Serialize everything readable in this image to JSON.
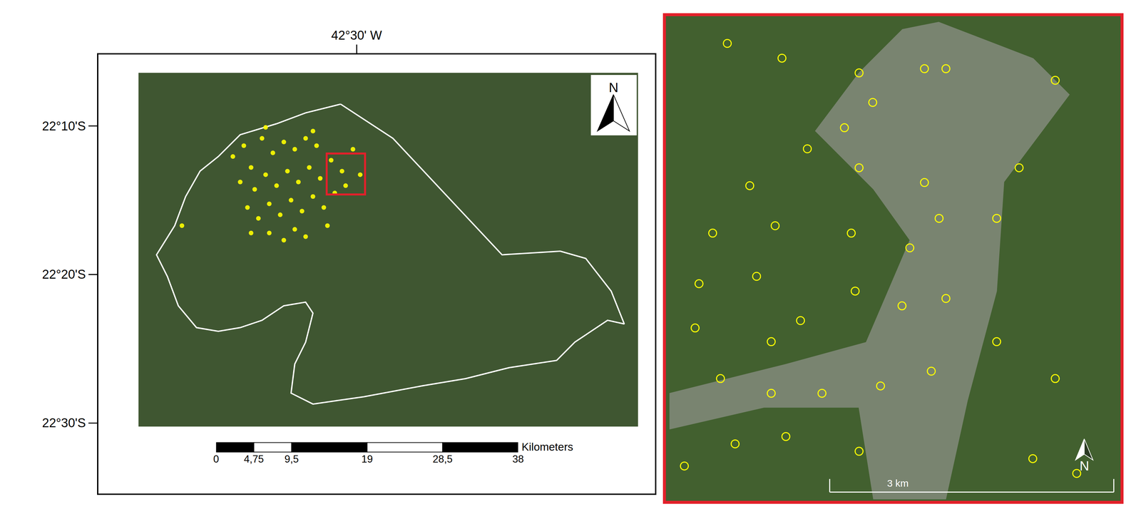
{
  "chart_data": [
    {
      "type": "map",
      "xlim": [
        -42.8139,
        -42.1375
      ],
      "ylim": [
        -22.5792,
        -22.0866
      ],
      "xticks": [
        {
          "value": -42.5,
          "label": "42°30' W"
        }
      ],
      "yticks": [
        {
          "value": -22.1667,
          "label": "22°10'S"
        },
        {
          "value": -22.3333,
          "label": "22°20'S"
        },
        {
          "value": -22.5,
          "label": "22°30'S"
        }
      ],
      "grid": false,
      "map_extent": {
        "lon": [
          -42.765,
          -42.158
        ],
        "lat": [
          -22.504,
          -22.107
        ]
      },
      "boundary": {
        "color": "#ffffff",
        "lon": [
          -42.5194,
          -42.4558,
          -42.3232,
          -42.2525,
          -42.2215,
          -42.1906,
          -42.1747,
          -42.195,
          -42.2348,
          -42.2569,
          -42.3144,
          -42.3674,
          -42.4204,
          -42.4912,
          -42.553,
          -42.5796,
          -42.5751,
          -42.5619,
          -42.553,
          -42.5619,
          -42.5884,
          -42.6149,
          -42.6414,
          -42.668,
          -42.6945,
          -42.7166,
          -42.7298,
          -42.7431,
          -42.721,
          -42.7077,
          -42.6901,
          -42.668,
          -42.6414,
          -42.5972,
          -42.5619,
          -42.5194
        ],
        "lat": [
          -22.1422,
          -22.1806,
          -22.3113,
          -22.3072,
          -22.3154,
          -22.3521,
          -22.3889,
          -22.3848,
          -22.4093,
          -22.4298,
          -22.4379,
          -22.4502,
          -22.4584,
          -22.4706,
          -22.4788,
          -22.4665,
          -22.4339,
          -22.4093,
          -22.3767,
          -22.3644,
          -22.3685,
          -22.3848,
          -22.393,
          -22.3971,
          -22.393,
          -22.3685,
          -22.3358,
          -22.3113,
          -22.2786,
          -22.2459,
          -22.2173,
          -22.201,
          -22.1765,
          -22.1642,
          -22.152,
          -22.1422
        ]
      },
      "landslides": {
        "color": "#ffff00",
        "marker": "circle",
        "lon": [
          -42.6503,
          -42.637,
          -42.6282,
          -42.6149,
          -42.6017,
          -42.5884,
          -42.5751,
          -42.5619,
          -42.5486,
          -42.6414,
          -42.6238,
          -42.6105,
          -42.5972,
          -42.584,
          -42.5707,
          -42.5575,
          -42.5442,
          -42.5309,
          -42.5177,
          -42.5044,
          -42.6326,
          -42.6193,
          -42.6061,
          -42.5928,
          -42.5796,
          -42.5663,
          -42.553,
          -42.5398,
          -42.5265,
          -42.5133,
          -42.6061,
          -42.5884,
          -42.5751,
          -42.5619,
          -42.6282,
          -42.7122,
          -42.4956,
          -42.5354,
          -42.6105,
          -42.553
        ],
        "lat": [
          -22.201,
          -22.1888,
          -22.2133,
          -22.1806,
          -22.1969,
          -22.1847,
          -22.1928,
          -22.1806,
          -22.1888,
          -22.2296,
          -22.2378,
          -22.2214,
          -22.2337,
          -22.2174,
          -22.2296,
          -22.2133,
          -22.2255,
          -22.2051,
          -22.2174,
          -22.1928,
          -22.2582,
          -22.2704,
          -22.2541,
          -22.2664,
          -22.25,
          -22.2623,
          -22.2459,
          -22.2582,
          -22.2419,
          -22.2337,
          -22.2868,
          -22.2949,
          -22.2827,
          -22.2909,
          -22.2868,
          -22.2786,
          -22.2214,
          -22.2786,
          -22.1683,
          -22.1724
        ]
      },
      "north_arrow": "N",
      "scale_bar": {
        "unit_label": "Kilometers",
        "xlim": [
          0,
          38
        ],
        "ticks": [
          0,
          {
            "value": 4.75,
            "label": "4,75"
          },
          {
            "value": 9.5,
            "label": "9,5"
          },
          19,
          {
            "value": 28.5,
            "label": "28,5"
          },
          38
        ]
      }
    },
    {
      "type": "map",
      "xlim": [
        -42.5363,
        -42.4897
      ],
      "ylim": [
        -22.2436,
        -22.1976
      ],
      "tick_labels": false,
      "grid": false,
      "color": "#e3202a",
      "landslides": {
        "color": "#ffff00",
        "marker": "circle-open",
        "lon": [
          -42.53,
          -42.5244,
          -42.5165,
          -42.5151,
          -42.5076,
          -42.5098,
          -42.5218,
          -42.5165,
          -42.5098,
          -42.5277,
          -42.5315,
          -42.5251,
          -42.5173,
          -42.5113,
          -42.5083,
          -42.5024,
          -42.5001,
          -42.4964,
          -42.5329,
          -42.527,
          -42.5225,
          -42.5169,
          -42.5121,
          -42.5076,
          -42.5333,
          -42.5307,
          -42.5255,
          -42.5203,
          -42.5143,
          -42.5091,
          -42.5024,
          -42.4964,
          -42.5292,
          -42.524,
          -42.5344,
          -42.5165,
          -42.4987,
          -42.4942,
          -42.518,
          -42.5255
        ],
        "lat": [
          -22.2002,
          -22.2016,
          -22.203,
          -22.2058,
          -22.2026,
          -22.2026,
          -22.2102,
          -22.212,
          -22.2134,
          -22.2137,
          -22.2182,
          -22.2175,
          -22.2182,
          -22.2196,
          -22.2168,
          -22.2168,
          -22.212,
          -22.2037,
          -22.223,
          -22.2223,
          -22.2265,
          -22.2237,
          -22.2251,
          -22.2244,
          -22.2272,
          -22.232,
          -22.2334,
          -22.2334,
          -22.2327,
          -22.2313,
          -22.2285,
          -22.232,
          -22.2382,
          -22.2375,
          -22.2403,
          -22.2389,
          -22.2396,
          -22.241,
          -22.2082,
          -22.2285
        ]
      },
      "north_arrow": "N",
      "scale_bar": {
        "length": 3,
        "label": "3 km"
      }
    }
  ]
}
